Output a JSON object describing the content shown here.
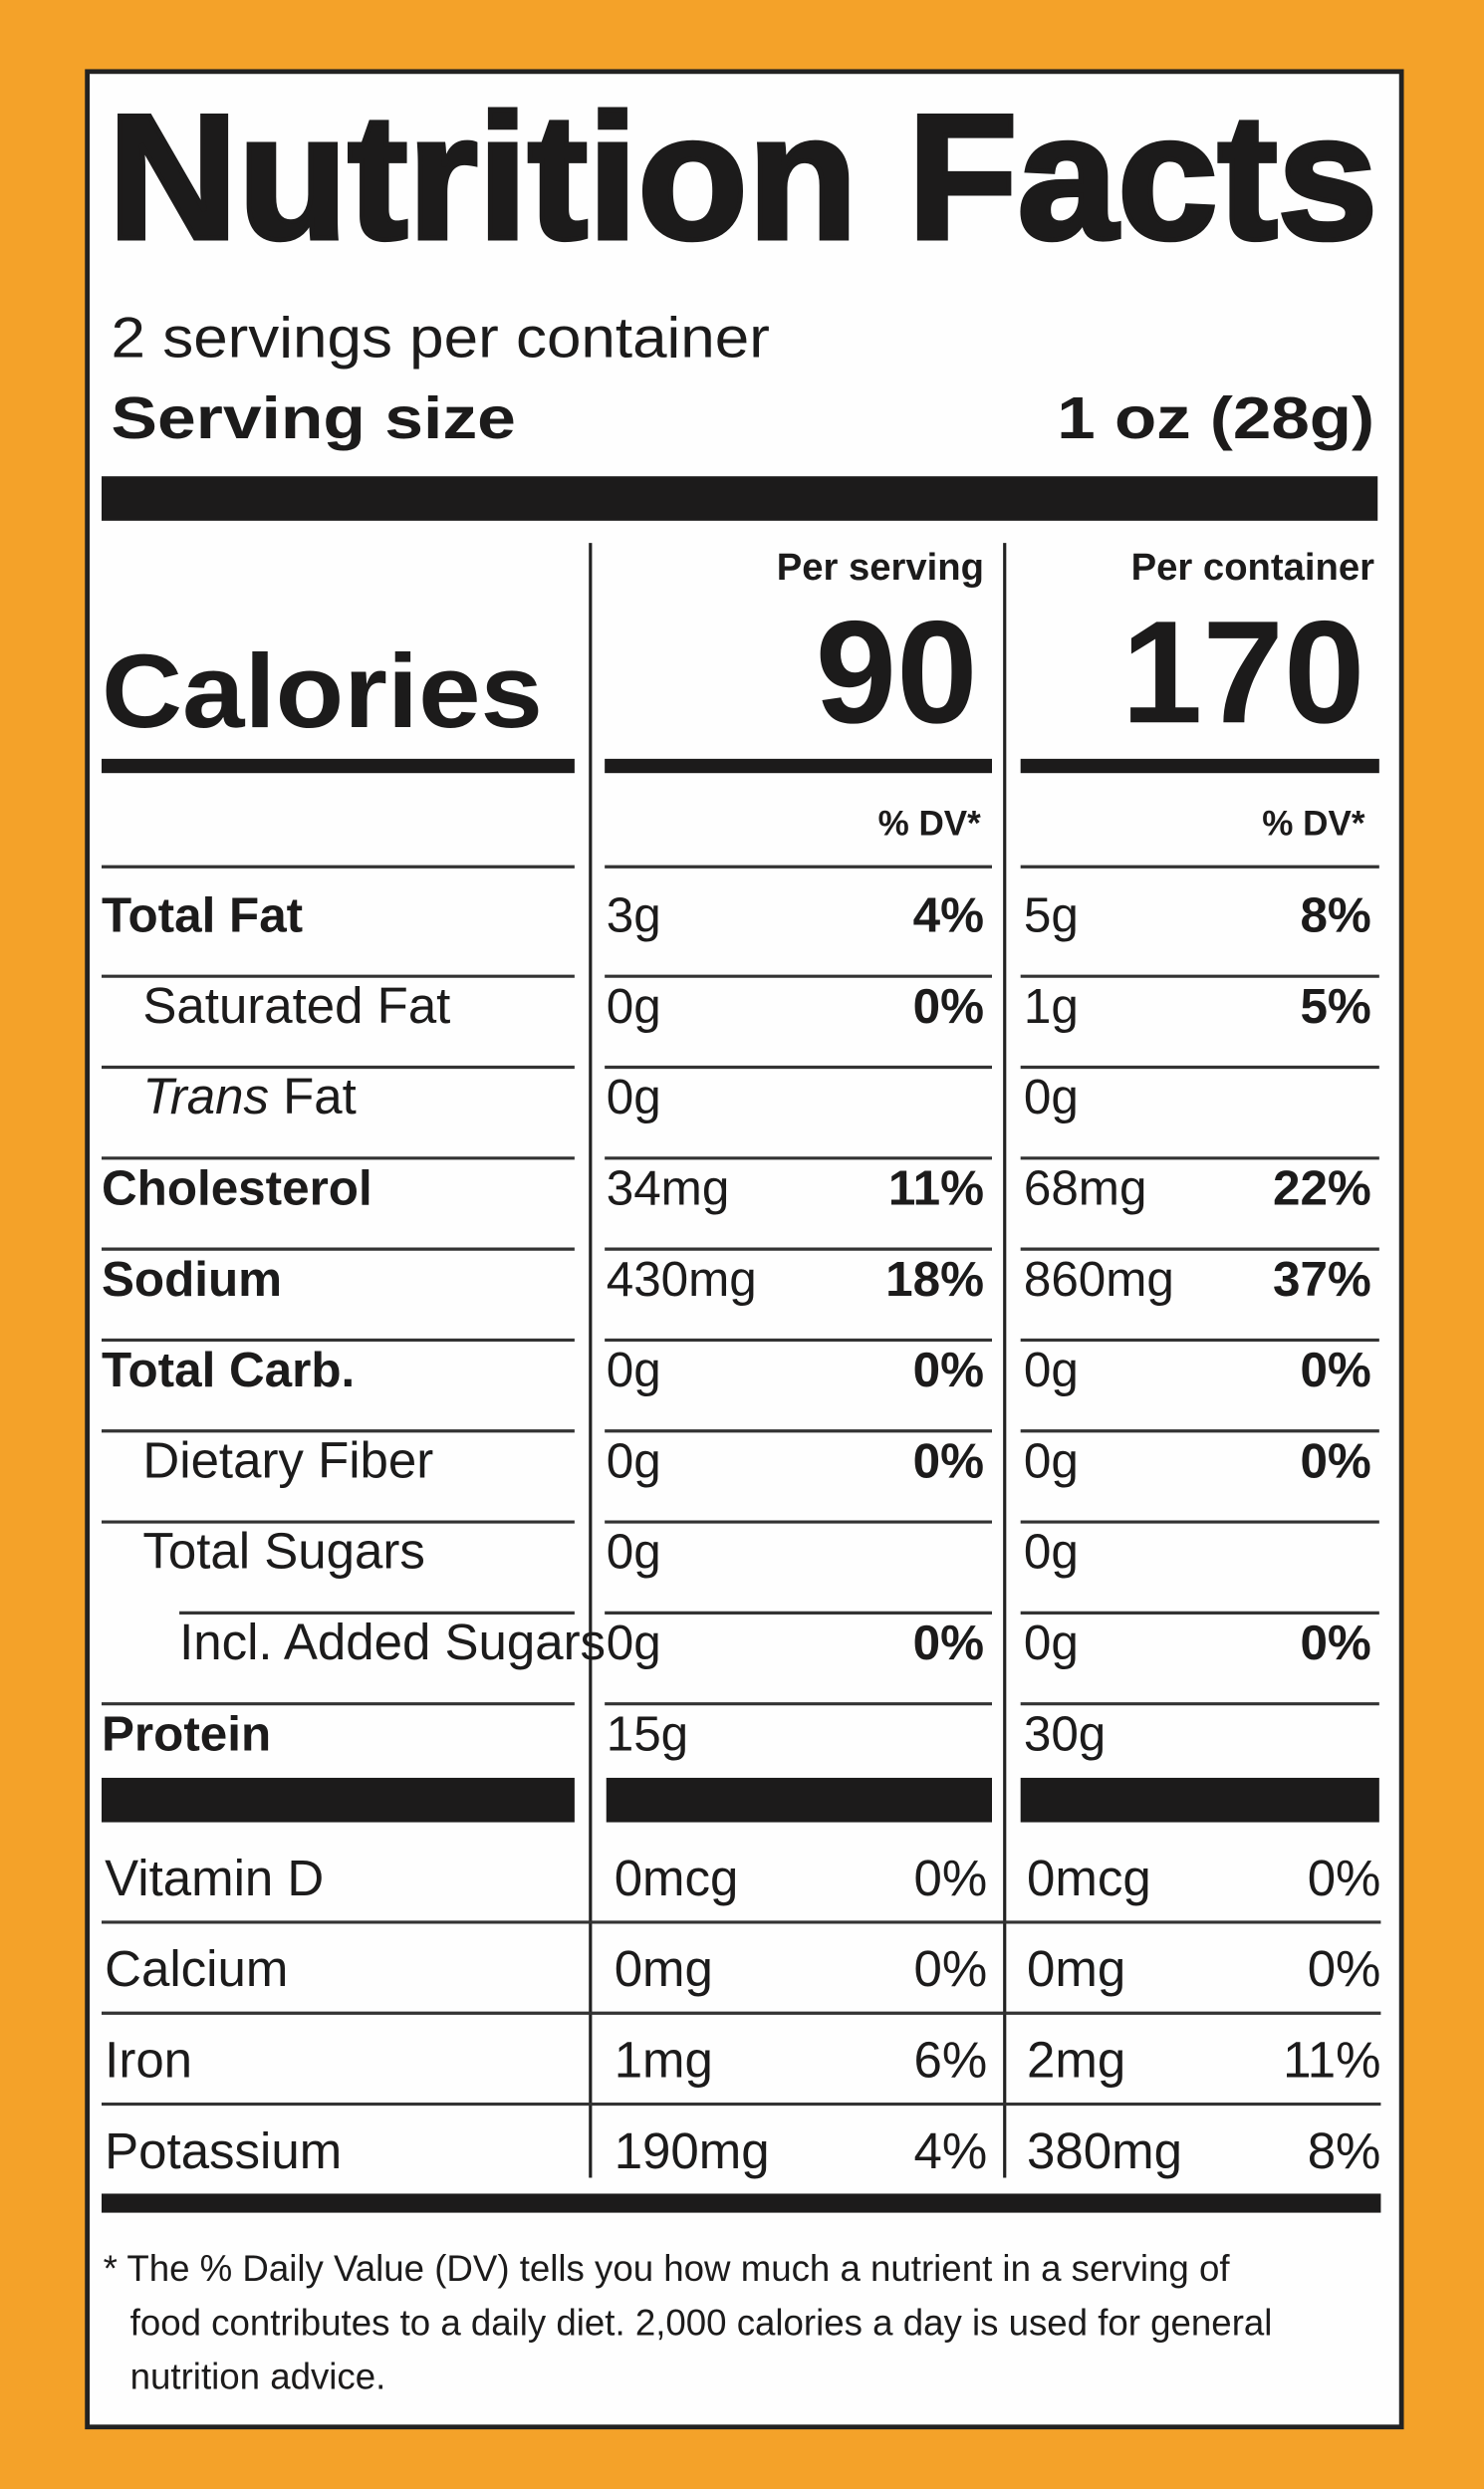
{
  "title": "Nutrition Facts",
  "servings": "2 servings per container",
  "serving_size": {
    "label": "Serving size",
    "value": "1 oz (28g)"
  },
  "calories": {
    "label": "Calories",
    "per_serving_header": "Per serving",
    "per_serving": "90",
    "per_container_header": "Per container",
    "per_container": "170"
  },
  "dv_header": [
    "% DV*",
    "% DV*"
  ],
  "nutrients": [
    {
      "name": "Total Fat",
      "level": 0,
      "serving_amount": "3g",
      "serving_dv": "4%",
      "container_amount": "5g",
      "container_dv": "8%"
    },
    {
      "name": "Saturated Fat",
      "level": 1,
      "serving_amount": "0g",
      "serving_dv": "0%",
      "container_amount": "1g",
      "container_dv": "5%"
    },
    {
      "italic": "Trans",
      "name": "Fat",
      "level": 1,
      "serving_amount": "0g",
      "container_amount": "0g"
    },
    {
      "name": "Cholesterol",
      "level": 0,
      "serving_amount": "34mg",
      "serving_dv": "11%",
      "container_amount": "68mg",
      "container_dv": "22%"
    },
    {
      "name": "Sodium",
      "level": 0,
      "serving_amount": "430mg",
      "serving_dv": "18%",
      "container_amount": "860mg",
      "container_dv": "37%"
    },
    {
      "name": "Total Carb.",
      "level": 0,
      "serving_amount": "0g",
      "serving_dv": "0%",
      "container_amount": "0g",
      "container_dv": "0%"
    },
    {
      "name": "Dietary Fiber",
      "level": 1,
      "serving_amount": "0g",
      "serving_dv": "0%",
      "container_amount": "0g",
      "container_dv": "0%"
    },
    {
      "name": "Total Sugars",
      "level": 1,
      "serving_amount": "0g",
      "container_amount": "0g"
    },
    {
      "name": "Incl. Added Sugars",
      "level": 2,
      "serving_amount": "0g",
      "serving_dv": "0%",
      "container_amount": "0g",
      "container_dv": "0%"
    },
    {
      "name": "Protein",
      "level": 0,
      "serving_amount": "15g",
      "container_amount": "30g"
    }
  ],
  "vitamins": [
    {
      "name": "Vitamin D",
      "serving_amount": "0mcg",
      "serving_dv": "0%",
      "container_amount": "0mcg",
      "container_dv": "0%"
    },
    {
      "name": "Calcium",
      "serving_amount": "0mg",
      "serving_dv": "0%",
      "container_amount": "0mg",
      "container_dv": "0%"
    },
    {
      "name": "Iron",
      "serving_amount": "1mg",
      "serving_dv": "6%",
      "container_amount": "2mg",
      "container_dv": "11%"
    },
    {
      "name": "Potassium",
      "serving_amount": "190mg",
      "serving_dv": "4%",
      "container_amount": "380mg",
      "container_dv": "8%"
    }
  ],
  "footnote": [
    "* The % Daily Value (DV) tells you how much a nutrient in a serving of",
    "food contributes to a daily diet. 2,000 calories a day is used for general",
    "nutrition advice."
  ]
}
